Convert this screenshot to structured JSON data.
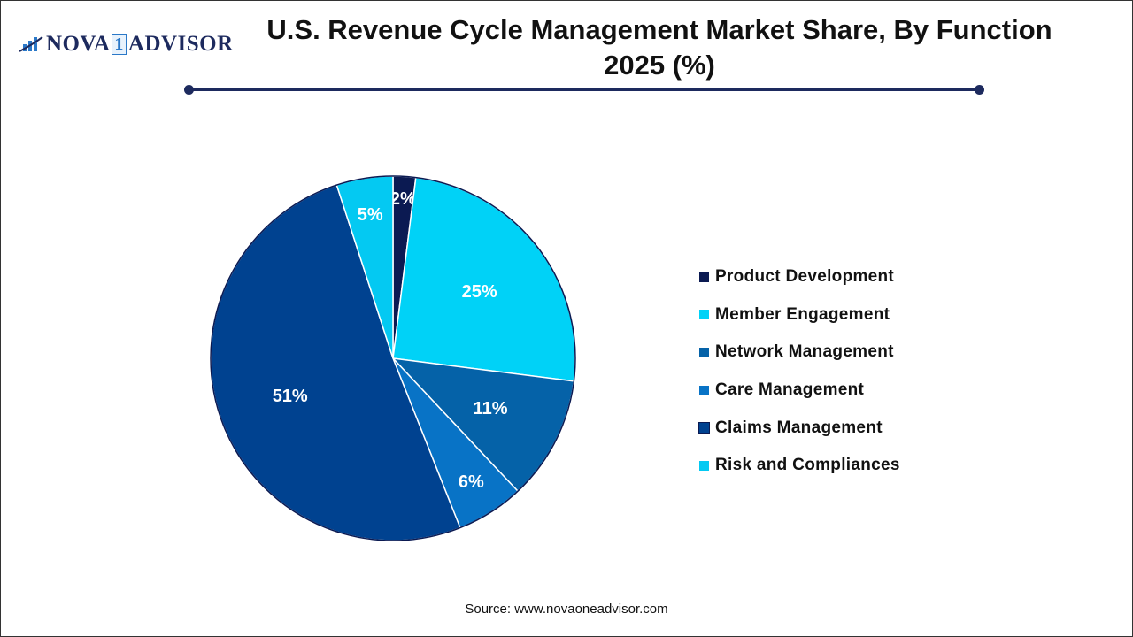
{
  "logo_text": "NOVA 1 ADVISOR",
  "title": "U.S. Revenue Cycle Management Market Share, By Function 2025 (%)",
  "source": "Source: www.novaoneadvisor.com",
  "chart_data": {
    "type": "pie",
    "title": "U.S. Revenue Cycle Management Market Share, By Function 2025 (%)",
    "legend_position": "right",
    "start_angle": "top, clockwise",
    "slices": [
      {
        "label": "Product Development",
        "value": 2,
        "display": "2%",
        "color": "#0b1a52"
      },
      {
        "label": "Member Engagement",
        "value": 25,
        "display": "25%",
        "color": "#00d2f7"
      },
      {
        "label": "Network Management",
        "value": 11,
        "display": "11%",
        "color": "#0562a8"
      },
      {
        "label": "Care Management",
        "value": 6,
        "display": "6%",
        "color": "#0873c6"
      },
      {
        "label": "Claims Management",
        "value": 51,
        "display": "51%",
        "color": "#004290"
      },
      {
        "label": "Risk and Compliances",
        "value": 5,
        "display": "5%",
        "color": "#04c9f2"
      }
    ]
  }
}
